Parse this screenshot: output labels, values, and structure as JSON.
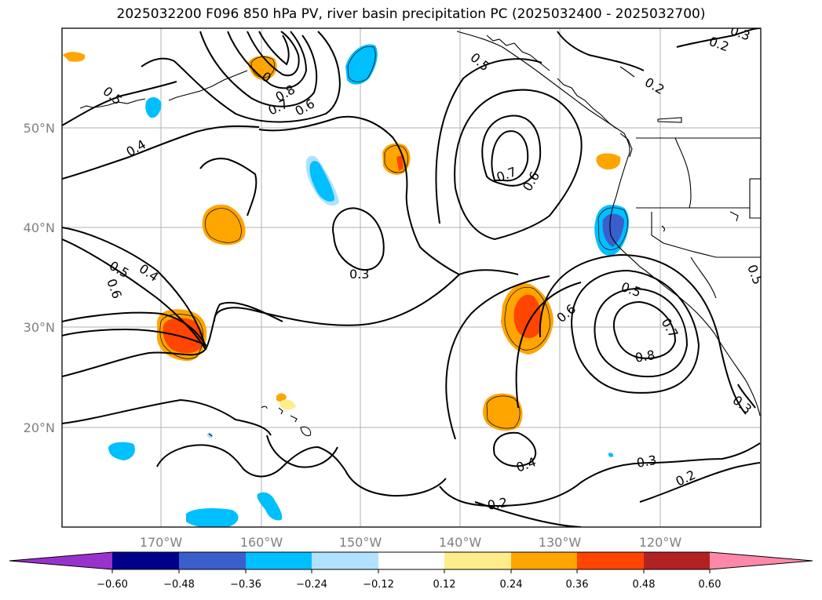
{
  "title": "2025032200 F096 850 hPa PV, river basin precipitation PC (2025032400 - 2025032700)",
  "map": {
    "lon_labels": [
      "170°W",
      "160°W",
      "150°W",
      "140°W",
      "130°W",
      "120°W"
    ],
    "lat_labels": [
      "50°N",
      "40°N",
      "30°N",
      "20°N"
    ]
  },
  "contour_labels": {
    "c1": "0.5",
    "c2": "0.4",
    "c3": "0.7",
    "c4": "0.6",
    "c5": "0.8",
    "c6": "0.5",
    "c7": "0.7",
    "c8": "0.6",
    "c9": "0.3",
    "c10": "0.4",
    "c11": "0.6",
    "c12": "0.5",
    "c13": "0.2",
    "c14": "0.2",
    "c15": "0.5",
    "c16": "0.7",
    "c17": "0.8",
    "c18": "0.6",
    "c19": "0.3",
    "c20": "0.3",
    "c21": "0.4",
    "c22": "0.2",
    "c23": "0.2",
    "c24": "0.3",
    "c25": "0.5",
    "c26": "0",
    "c27": "0.3"
  },
  "colorbar": {
    "colors": [
      "#9932cc",
      "#00008b",
      "#3a5fcd",
      "#00bfff",
      "#b0e2ff",
      "#ffffff",
      "#ffec8b",
      "#ffa500",
      "#ff4500",
      "#b22222",
      "#ff88a8"
    ],
    "tick_labels": [
      "−0.60",
      "−0.48",
      "−0.36",
      "−0.24",
      "−0.12",
      "0.12",
      "0.24",
      "0.36",
      "0.48",
      "0.60"
    ]
  }
}
